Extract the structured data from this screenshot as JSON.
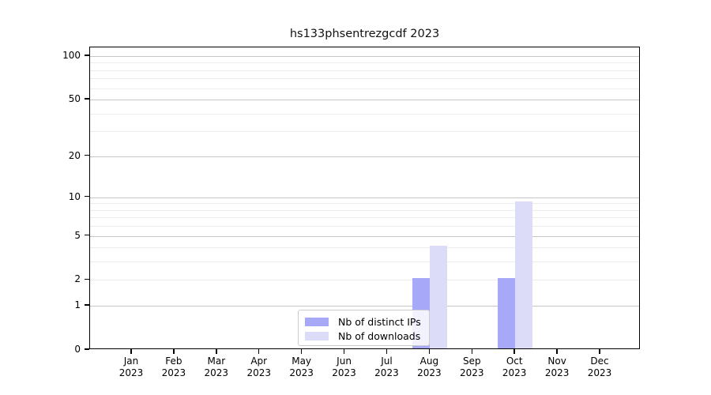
{
  "title": "hs133phsentrezgcdf 2023",
  "legend": {
    "items": [
      {
        "label": "Nb of distinct IPs",
        "color": "#a8a8f8"
      },
      {
        "label": "Nb of downloads",
        "color": "#dcdcf8"
      }
    ]
  },
  "chart_data": {
    "type": "bar",
    "title": "hs133phsentrezgcdf 2023",
    "xlabel": "",
    "ylabel": "",
    "categories": [
      "Jan 2023",
      "Feb 2023",
      "Mar 2023",
      "Apr 2023",
      "May 2023",
      "Jun 2023",
      "Jul 2023",
      "Aug 2023",
      "Sep 2023",
      "Oct 2023",
      "Nov 2023",
      "Dec 2023"
    ],
    "x_tick_months": [
      "Jan",
      "Feb",
      "Mar",
      "Apr",
      "May",
      "Jun",
      "Jul",
      "Aug",
      "Sep",
      "Oct",
      "Nov",
      "Dec"
    ],
    "x_tick_year": "2023",
    "series": [
      {
        "name": "Nb of distinct IPs",
        "color": "#a8a8f8",
        "values": [
          0,
          0,
          0,
          0,
          0,
          0,
          0,
          2,
          0,
          2,
          0,
          0
        ]
      },
      {
        "name": "Nb of downloads",
        "color": "#dcdcf8",
        "values": [
          0,
          0,
          0,
          0,
          0,
          0,
          0,
          4,
          0,
          9,
          0,
          0
        ]
      }
    ],
    "y_scale": "log10(1+y)",
    "y_tick_labels": [
      "100",
      "50",
      "20",
      "10",
      "5",
      "2",
      "1",
      "0"
    ],
    "y_tick_values": [
      100,
      50,
      20,
      10,
      5,
      2,
      1,
      0
    ],
    "y_minor_gridlines": [
      2,
      3,
      4,
      5,
      6,
      7,
      8,
      9,
      20,
      30,
      40,
      60,
      70,
      80,
      90
    ],
    "y_major_gridlines": [
      1,
      5,
      10,
      20,
      50,
      100
    ],
    "ylim": [
      0,
      115
    ],
    "grid": true,
    "legend_position": "inside-bottom-center",
    "bar_grouping": "pair centered on month tick"
  }
}
